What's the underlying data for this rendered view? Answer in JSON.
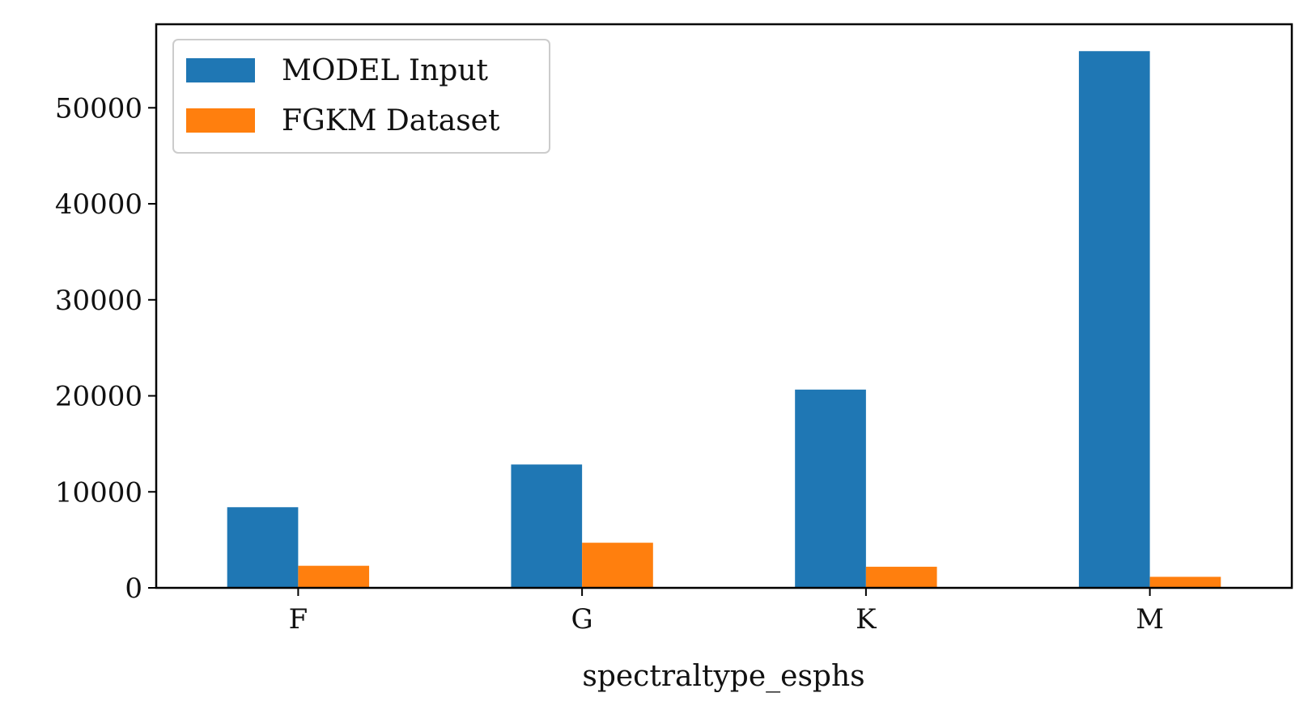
{
  "chart_data": {
    "type": "bar",
    "title": "",
    "xlabel": "spectraltype_esphs",
    "ylabel": "",
    "categories": [
      "F",
      "G",
      "K",
      "M"
    ],
    "series": [
      {
        "name": "MODEL Input",
        "color": "#1f77b4",
        "values": [
          8400,
          12850,
          20650,
          55900
        ]
      },
      {
        "name": "FGKM Dataset",
        "color": "#ff7f0e",
        "values": [
          2300,
          4700,
          2200,
          1150
        ]
      }
    ],
    "ylim": [
      0,
      58700
    ],
    "yticks": [
      0,
      10000,
      20000,
      30000,
      40000,
      50000
    ],
    "grid": false,
    "legend_position": "top-left"
  }
}
